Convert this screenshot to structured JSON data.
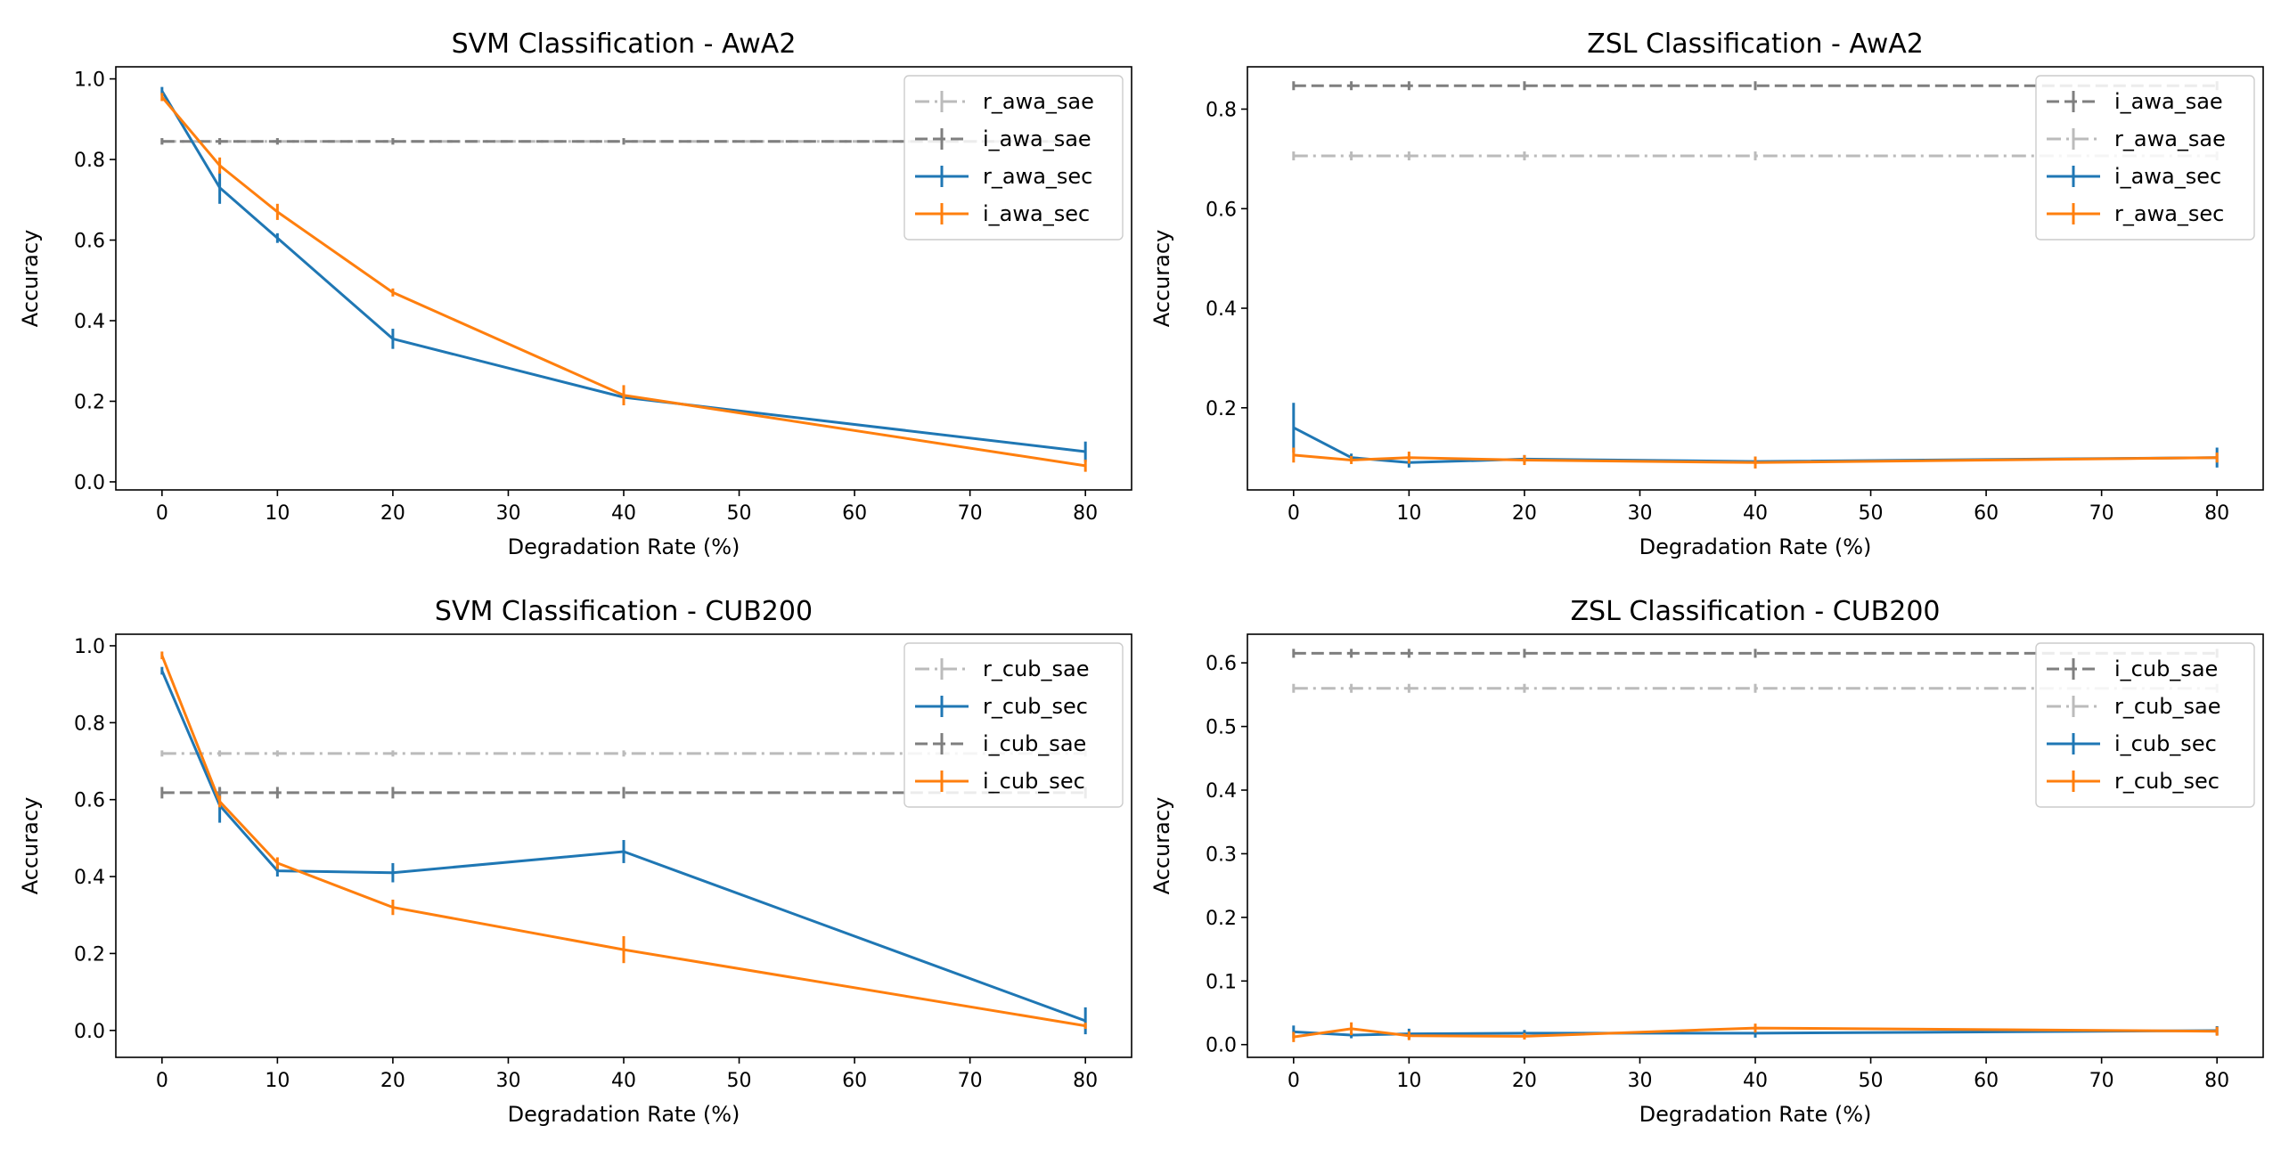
{
  "chart_data": [
    {
      "type": "line",
      "title": "SVM Classification - AwA2",
      "xlabel": "Degradation Rate (%)",
      "ylabel": "Accuracy",
      "xlim": [
        -4,
        84
      ],
      "ylim": [
        -0.02,
        1.03
      ],
      "xticks": [
        0,
        10,
        20,
        30,
        40,
        50,
        60,
        70,
        80
      ],
      "xtick_labels": [
        "0",
        "10",
        "20",
        "30",
        "40",
        "50",
        "60",
        "70",
        "80"
      ],
      "yticks": [
        0.0,
        0.2,
        0.4,
        0.6,
        0.8,
        1.0
      ],
      "ytick_labels": [
        "0.0",
        "0.2",
        "0.4",
        "0.6",
        "0.8",
        "1.0"
      ],
      "legend": "top-right",
      "grid": false,
      "x": [
        0,
        5,
        10,
        20,
        40,
        80
      ],
      "series": [
        {
          "name": "r_awa_sae",
          "color": "#bbbbbb",
          "style": "dashdot",
          "values": [
            0.845,
            0.845,
            0.845,
            0.845,
            0.845,
            0.845
          ],
          "errors": [
            0.008,
            0.008,
            0.008,
            0.008,
            0.008,
            0.008
          ]
        },
        {
          "name": "i_awa_sae",
          "color": "#7f7f7f",
          "style": "dashed",
          "values": [
            0.845,
            0.845,
            0.845,
            0.845,
            0.845,
            0.845
          ],
          "errors": [
            0.008,
            0.008,
            0.008,
            0.008,
            0.008,
            0.008
          ]
        },
        {
          "name": "r_awa_sec",
          "color": "#1f77b4",
          "style": "solid",
          "values": [
            0.97,
            0.73,
            0.605,
            0.355,
            0.21,
            0.075
          ],
          "errors": [
            0.01,
            0.04,
            0.012,
            0.025,
            0.01,
            0.025
          ]
        },
        {
          "name": "i_awa_sec",
          "color": "#ff7f0e",
          "style": "solid",
          "values": [
            0.955,
            0.785,
            0.67,
            0.47,
            0.215,
            0.04
          ],
          "errors": [
            0.01,
            0.02,
            0.02,
            0.01,
            0.025,
            0.015
          ]
        }
      ]
    },
    {
      "type": "line",
      "title": "ZSL Classification - AwA2",
      "xlabel": "Degradation Rate (%)",
      "ylabel": "Accuracy",
      "xlim": [
        -4,
        84
      ],
      "ylim": [
        0.035,
        0.885
      ],
      "xticks": [
        0,
        10,
        20,
        30,
        40,
        50,
        60,
        70,
        80
      ],
      "xtick_labels": [
        "0",
        "10",
        "20",
        "30",
        "40",
        "50",
        "60",
        "70",
        "80"
      ],
      "yticks": [
        0.2,
        0.4,
        0.6,
        0.8
      ],
      "ytick_labels": [
        "0.2",
        "0.4",
        "0.6",
        "0.8"
      ],
      "legend": "top-right",
      "grid": false,
      "x": [
        0,
        5,
        10,
        20,
        40,
        80
      ],
      "series": [
        {
          "name": "i_awa_sae",
          "color": "#7f7f7f",
          "style": "dashed",
          "values": [
            0.847,
            0.847,
            0.847,
            0.847,
            0.847,
            0.847
          ],
          "errors": [
            0,
            0,
            0,
            0,
            0,
            0
          ]
        },
        {
          "name": "r_awa_sae",
          "color": "#bbbbbb",
          "style": "dashdot",
          "values": [
            0.706,
            0.706,
            0.706,
            0.706,
            0.706,
            0.706
          ],
          "errors": [
            0,
            0,
            0,
            0,
            0,
            0
          ]
        },
        {
          "name": "i_awa_sec",
          "color": "#1f77b4",
          "style": "solid",
          "values": [
            0.16,
            0.1,
            0.09,
            0.097,
            0.092,
            0.1
          ],
          "errors": [
            0.05,
            0.008,
            0.01,
            0.008,
            0.01,
            0.02
          ]
        },
        {
          "name": "r_awa_sec",
          "color": "#ff7f0e",
          "style": "solid",
          "values": [
            0.105,
            0.095,
            0.1,
            0.095,
            0.09,
            0.1
          ],
          "errors": [
            0.015,
            0.008,
            0.012,
            0.01,
            0.012,
            0.01
          ]
        }
      ]
    },
    {
      "type": "line",
      "title": "SVM Classification - CUB200",
      "xlabel": "Degradation Rate (%)",
      "ylabel": "Accuracy",
      "xlim": [
        -4,
        84
      ],
      "ylim": [
        -0.07,
        1.03
      ],
      "xticks": [
        0,
        10,
        20,
        30,
        40,
        50,
        60,
        70,
        80
      ],
      "xtick_labels": [
        "0",
        "10",
        "20",
        "30",
        "40",
        "50",
        "60",
        "70",
        "80"
      ],
      "yticks": [
        0.0,
        0.2,
        0.4,
        0.6,
        0.8,
        1.0
      ],
      "ytick_labels": [
        "0.0",
        "0.2",
        "0.4",
        "0.6",
        "0.8",
        "1.0"
      ],
      "legend": "top-right",
      "grid": false,
      "x": [
        0,
        5,
        10,
        20,
        40,
        80
      ],
      "series": [
        {
          "name": "r_cub_sae",
          "color": "#bbbbbb",
          "style": "dashdot",
          "values": [
            0.72,
            0.72,
            0.72,
            0.72,
            0.72,
            0.72
          ],
          "errors": [
            0.008,
            0.008,
            0.008,
            0.008,
            0.008,
            0.008
          ]
        },
        {
          "name": "r_cub_sec",
          "color": "#1f77b4",
          "style": "solid",
          "values": [
            0.935,
            0.585,
            0.415,
            0.41,
            0.465,
            0.025
          ],
          "errors": [
            0.01,
            0.045,
            0.015,
            0.025,
            0.03,
            0.035
          ]
        },
        {
          "name": "i_cub_sae",
          "color": "#7f7f7f",
          "style": "dashed",
          "values": [
            0.618,
            0.618,
            0.618,
            0.618,
            0.618,
            0.618
          ],
          "errors": [
            0.015,
            0.015,
            0.015,
            0.015,
            0.015,
            0.015
          ]
        },
        {
          "name": "i_cub_sec",
          "color": "#ff7f0e",
          "style": "solid",
          "values": [
            0.975,
            0.595,
            0.435,
            0.32,
            0.21,
            0.012
          ],
          "errors": [
            0.01,
            0.015,
            0.015,
            0.02,
            0.035,
            0.008
          ]
        }
      ]
    },
    {
      "type": "line",
      "title": "ZSL Classification - CUB200",
      "xlabel": "Degradation Rate (%)",
      "ylabel": "Accuracy",
      "xlim": [
        -4,
        84
      ],
      "ylim": [
        -0.02,
        0.645
      ],
      "xticks": [
        0,
        10,
        20,
        30,
        40,
        50,
        60,
        70,
        80
      ],
      "xtick_labels": [
        "0",
        "10",
        "20",
        "30",
        "40",
        "50",
        "60",
        "70",
        "80"
      ],
      "yticks": [
        0.0,
        0.1,
        0.2,
        0.3,
        0.4,
        0.5,
        0.6
      ],
      "ytick_labels": [
        "0.0",
        "0.1",
        "0.2",
        "0.3",
        "0.4",
        "0.5",
        "0.6"
      ],
      "legend": "top-right",
      "grid": false,
      "x": [
        0,
        5,
        10,
        20,
        40,
        80
      ],
      "series": [
        {
          "name": "i_cub_sae",
          "color": "#7f7f7f",
          "style": "dashed",
          "values": [
            0.615,
            0.615,
            0.615,
            0.615,
            0.615,
            0.615
          ],
          "errors": [
            0,
            0,
            0,
            0,
            0,
            0
          ]
        },
        {
          "name": "r_cub_sae",
          "color": "#bbbbbb",
          "style": "dashdot",
          "values": [
            0.56,
            0.56,
            0.56,
            0.56,
            0.56,
            0.56
          ],
          "errors": [
            0,
            0,
            0,
            0,
            0,
            0
          ]
        },
        {
          "name": "i_cub_sec",
          "color": "#1f77b4",
          "style": "solid",
          "values": [
            0.02,
            0.015,
            0.017,
            0.018,
            0.018,
            0.022
          ],
          "errors": [
            0.01,
            0.005,
            0.008,
            0.005,
            0.004,
            0.003
          ]
        },
        {
          "name": "r_cub_sec",
          "color": "#ff7f0e",
          "style": "solid",
          "values": [
            0.012,
            0.025,
            0.014,
            0.013,
            0.026,
            0.021
          ],
          "errors": [
            0.008,
            0.01,
            0.004,
            0.005,
            0.007,
            0.003
          ]
        }
      ]
    }
  ]
}
